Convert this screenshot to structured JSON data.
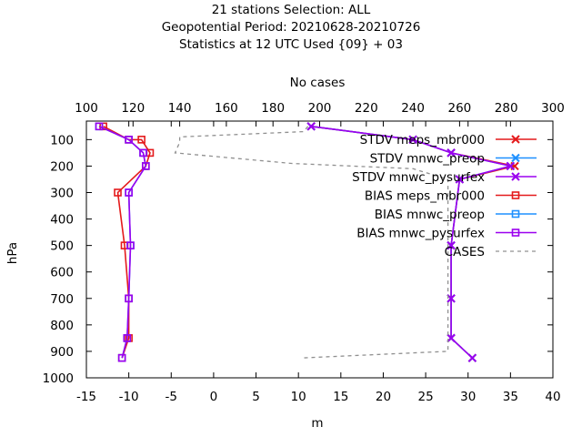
{
  "chart_data": {
    "type": "line",
    "title_lines": [
      "21 stations Selection: ALL",
      "Geopotential  Period: 20210628-20210726",
      "Statistics at 12 UTC  Used {09} + 03"
    ],
    "xlabel": "m",
    "ylabel": "hPa",
    "x2label": "No cases",
    "xlim": [
      -15,
      40
    ],
    "ylim": [
      1000,
      30
    ],
    "x2lim": [
      100,
      300
    ],
    "xticks": [
      "-15",
      "-10",
      "-5",
      "0",
      "5",
      "10",
      "15",
      "20",
      "25",
      "30",
      "35",
      "40"
    ],
    "yticks": [
      "100",
      "200",
      "300",
      "400",
      "500",
      "600",
      "700",
      "800",
      "900",
      "1000"
    ],
    "x2ticks": [
      "100",
      "120",
      "140",
      "160",
      "180",
      "200",
      "220",
      "240",
      "260",
      "280",
      "300"
    ],
    "legend_position": "top-right",
    "series": [
      {
        "name": "STDV meps_mbr000",
        "color": "#e41a1c",
        "marker": "x",
        "points": [
          [
            11.5,
            50
          ],
          [
            23.5,
            100
          ],
          [
            28,
            150
          ],
          [
            35.5,
            200
          ],
          [
            29,
            250
          ],
          [
            28,
            500
          ],
          [
            28,
            700
          ],
          [
            28,
            850
          ],
          [
            30.5,
            925
          ]
        ]
      },
      {
        "name": "STDV mnwc_preop",
        "color": "#1e90ff",
        "marker": "x",
        "points": [
          [
            11.5,
            50
          ],
          [
            23.5,
            100
          ],
          [
            28,
            150
          ],
          [
            35,
            200
          ],
          [
            29,
            250
          ],
          [
            28,
            500
          ],
          [
            28,
            700
          ],
          [
            28,
            850
          ],
          [
            30.5,
            925
          ]
        ]
      },
      {
        "name": "STDV mnwc_pysurfex",
        "color": "#9b00ef",
        "marker": "x",
        "points": [
          [
            11.5,
            50
          ],
          [
            23.5,
            100
          ],
          [
            28,
            150
          ],
          [
            35,
            200
          ],
          [
            29,
            250
          ],
          [
            28,
            500
          ],
          [
            28,
            700
          ],
          [
            28,
            850
          ],
          [
            30.5,
            925
          ]
        ]
      },
      {
        "name": "BIAS meps_mbr000",
        "color": "#e41a1c",
        "marker": "square",
        "points": [
          [
            -13,
            50
          ],
          [
            -10,
            100
          ],
          [
            -8.5,
            100
          ],
          [
            -7.5,
            150
          ],
          [
            -8,
            200
          ],
          [
            -11.3,
            300
          ],
          [
            -10.5,
            500
          ],
          [
            -10,
            700
          ],
          [
            -10,
            850
          ],
          [
            -10.8,
            925
          ]
        ]
      },
      {
        "name": "BIAS mnwc_preop",
        "color": "#1e90ff",
        "marker": "square",
        "points": [
          [
            -13.5,
            50
          ],
          [
            -10,
            100
          ],
          [
            -8.3,
            150
          ],
          [
            -8,
            200
          ],
          [
            -10,
            300
          ],
          [
            -9.8,
            500
          ],
          [
            -10,
            700
          ],
          [
            -10.2,
            850
          ],
          [
            -10.8,
            925
          ]
        ]
      },
      {
        "name": "BIAS mnwc_pysurfex",
        "color": "#9b00ef",
        "marker": "square",
        "points": [
          [
            -13.5,
            50
          ],
          [
            -10,
            100
          ],
          [
            -8.3,
            150
          ],
          [
            -8,
            200
          ],
          [
            -10,
            300
          ],
          [
            -9.8,
            500
          ],
          [
            -10,
            700
          ],
          [
            -10.2,
            850
          ],
          [
            -10.8,
            925
          ]
        ]
      },
      {
        "name": "CASES",
        "color": "#909090",
        "marker": "none",
        "dashed": true,
        "axis": "x2",
        "points": [
          [
            195,
            50
          ],
          [
            193,
            70
          ],
          [
            140,
            90
          ],
          [
            140,
            110
          ],
          [
            138,
            150
          ],
          [
            188,
            190
          ],
          [
            240,
            210
          ],
          [
            255,
            250
          ],
          [
            255,
            900
          ],
          [
            192,
            925
          ]
        ]
      }
    ]
  }
}
